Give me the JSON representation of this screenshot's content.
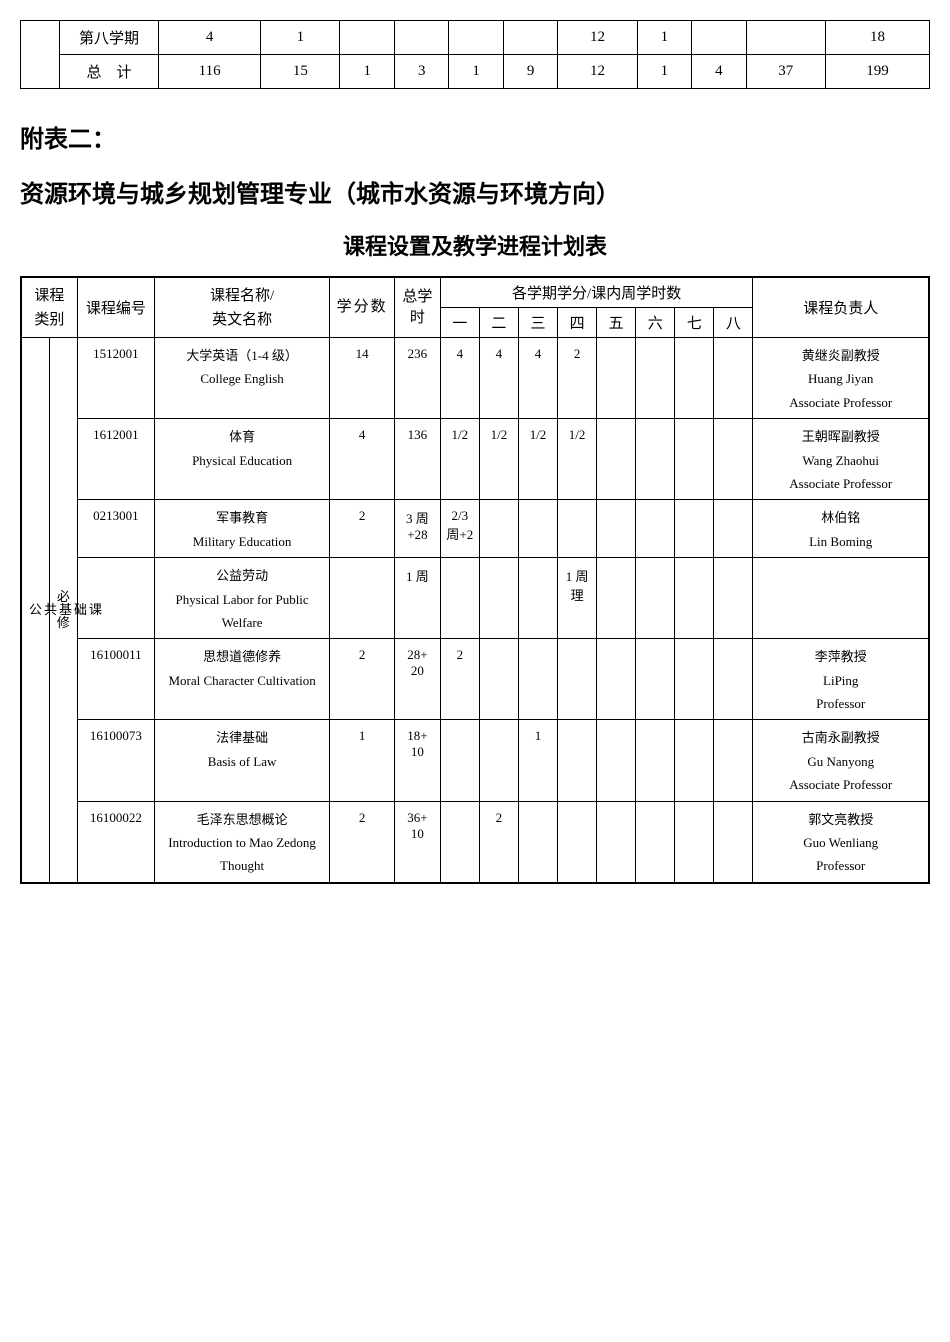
{
  "topTable": {
    "rows": [
      {
        "label": "第八学期",
        "cells": [
          "4",
          "1",
          "",
          "",
          "",
          "",
          "12",
          "1",
          "",
          "",
          "18"
        ]
      },
      {
        "label": "总　计",
        "cells": [
          "116",
          "15",
          "1",
          "3",
          "1",
          "9",
          "12",
          "1",
          "4",
          "37",
          "199"
        ]
      }
    ]
  },
  "headings": {
    "h1": "附表二：",
    "h2": "资源环境与城乡规划管理专业（城市水资源与环境方向）",
    "h3": "课程设置及教学进程计划表"
  },
  "mainHeader": {
    "courseCat": "课程\n类别",
    "courseCode": "课程编号",
    "courseName": "课程名称/\n英文名称",
    "credits": "学分数",
    "hours": "总学时",
    "semesterGroup": "各学期学分/课内周学时数",
    "semesters": [
      "一",
      "二",
      "三",
      "四",
      "五",
      "六",
      "七",
      "八"
    ],
    "personInCharge": "课程负责人"
  },
  "categoryCol1": "公共基础课",
  "categoryCol2": "必修",
  "courses": [
    {
      "code": "1512001",
      "nameCn": "大学英语（1-4 级）",
      "nameEn": "College English",
      "credits": "14",
      "hours": "236",
      "sem": [
        "4",
        "4",
        "4",
        "2",
        "",
        "",
        "",
        ""
      ],
      "personCn": "黄继炎副教授",
      "personEn1": "Huang Jiyan",
      "personEn2": "Associate Professor"
    },
    {
      "code": "1612001",
      "nameCn": "体育",
      "nameEn": "Physical Education",
      "credits": "4",
      "hours": "136",
      "sem": [
        "1/2",
        "1/2",
        "1/2",
        "1/2",
        "",
        "",
        "",
        ""
      ],
      "personCn": "王朝晖副教授",
      "personEn1": "Wang Zhaohui",
      "personEn2": "Associate Professor"
    },
    {
      "code": "0213001",
      "nameCn": "军事教育",
      "nameEn": "Military Education",
      "credits": "2",
      "hours": "3 周\n+28",
      "sem": [
        "2/3\n周+2",
        "",
        "",
        "",
        "",
        "",
        "",
        ""
      ],
      "personCn": "林伯铭",
      "personEn1": "Lin Boming",
      "personEn2": ""
    },
    {
      "code": "",
      "nameCn": "公益劳动",
      "nameEn": "Physical Labor for Public Welfare",
      "credits": "",
      "hours": "1 周",
      "sem": [
        "",
        "",
        "",
        "1 周\n理",
        "",
        "",
        "",
        ""
      ],
      "personCn": "",
      "personEn1": "",
      "personEn2": ""
    },
    {
      "code": "16100011",
      "nameCn": "思想道德修养",
      "nameEn": "Moral Character Cultivation",
      "credits": "2",
      "hours": "28+\n20",
      "sem": [
        "2",
        "",
        "",
        "",
        "",
        "",
        "",
        ""
      ],
      "personCn": "李萍教授",
      "personEn1": "LiPing",
      "personEn2": "Professor"
    },
    {
      "code": "16100073",
      "nameCn": "法律基础",
      "nameEn": "Basis of Law",
      "credits": "1",
      "hours": "18+\n10",
      "sem": [
        "",
        "",
        "1",
        "",
        "",
        "",
        "",
        ""
      ],
      "personCn": "古南永副教授",
      "personEn1": "Gu Nanyong",
      "personEn2": "Associate Professor"
    },
    {
      "code": "16100022",
      "nameCn": "毛泽东思想概论",
      "nameEn": "Introduction to Mao Zedong Thought",
      "credits": "2",
      "hours": "36+\n10",
      "sem": [
        "",
        "2",
        "",
        "",
        "",
        "",
        "",
        ""
      ],
      "personCn": "郭文亮教授",
      "personEn1": "Guo Wenliang",
      "personEn2": "Professor"
    }
  ]
}
